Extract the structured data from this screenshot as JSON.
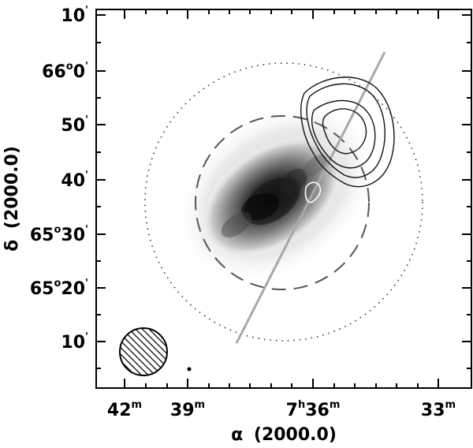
{
  "chart_data": {
    "type": "scatter",
    "title": "",
    "xlabel": {
      "symbol": "α",
      "text": "(2000.0)"
    },
    "ylabel": {
      "symbol": "δ",
      "text": "(2000.0)"
    },
    "x_ticks": [
      {
        "label": "42",
        "unit": "m"
      },
      {
        "label": "39",
        "unit": "m"
      },
      {
        "label": "7",
        "unit_pre": "h",
        "label2": "36",
        "unit": "m"
      },
      {
        "label": "33",
        "unit": "m"
      }
    ],
    "y_ticks": [
      {
        "label": "10",
        "unit": "'"
      },
      {
        "label": "66",
        "unit_pre": "o",
        "label2": "0",
        "unit": "'"
      },
      {
        "label": "50",
        "unit": "'"
      },
      {
        "label": "40",
        "unit": "'"
      },
      {
        "label": "65",
        "unit_pre": "o",
        "label2": "30",
        "unit": "'"
      },
      {
        "label": "65",
        "unit_pre": "o",
        "label2": "20",
        "unit": "'"
      },
      {
        "label": "10",
        "unit": "'"
      }
    ],
    "grid": false,
    "colors": {
      "galaxy_dark": "#1a1a1a",
      "galaxy_mid": "#777777",
      "galaxy_light": "#d8d8d8",
      "slit_line": "#a8a8a8",
      "contour": "#111111",
      "dashed_circle": "#555555",
      "dotted_circle": "#333333"
    }
  }
}
